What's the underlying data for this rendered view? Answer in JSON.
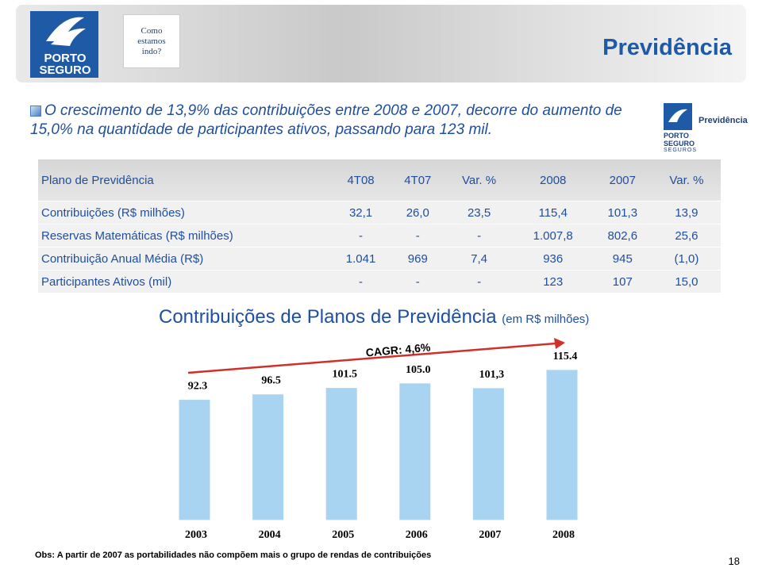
{
  "header": {
    "title": "Previdência",
    "badge": [
      "Como",
      "estamos",
      "indo?"
    ],
    "logo": [
      "PORTO",
      "SEGURO"
    ]
  },
  "bullet": "O crescimento de 13,9% das contribuições entre 2008 e 2007, decorre do aumento de 15,0% na quantidade de participantes ativos, passando para 123 mil.",
  "side_logo": {
    "name": [
      "PORTO",
      "SEGURO",
      "SEGUROS"
    ],
    "label": "Previdência"
  },
  "table": {
    "columns": [
      "Plano de Previdência",
      "4T08",
      "4T07",
      "Var. %",
      "2008",
      "2007",
      "Var. %"
    ],
    "rows": [
      [
        "Contribuições (R$ milhões)",
        "32,1",
        "26,0",
        "23,5",
        "115,4",
        "101,3",
        "13,9"
      ],
      [
        "Reservas Matemáticas (R$ milhões)",
        "-",
        "-",
        "-",
        "1.007,8",
        "802,6",
        "25,6"
      ],
      [
        "Contribuição Anual Média (R$)",
        "1.041",
        "969",
        "7,4",
        "936",
        "945",
        "(1,0)"
      ],
      [
        "Participantes Ativos (mil)",
        "-",
        "-",
        "-",
        "123",
        "107",
        "15,0"
      ]
    ]
  },
  "chart_data": {
    "type": "bar",
    "title": "Contribuições de Planos de Previdência",
    "subtitle": "(em R$ milhões)",
    "annotation": "CAGR: 4,6%",
    "categories": [
      "2003",
      "2004",
      "2005",
      "2006",
      "2007",
      "2008"
    ],
    "values": [
      92.3,
      96.5,
      101.5,
      105.0,
      101.3,
      115.4
    ],
    "value_labels": [
      "92.3",
      "96.5",
      "101.5",
      "105.0",
      "101,3",
      "115.4"
    ],
    "color": "#a8d4f2"
  },
  "footnote": "Obs: A partir de 2007 as portabilidades não compõem mais o grupo de rendas de contribuições",
  "page_number": 18
}
